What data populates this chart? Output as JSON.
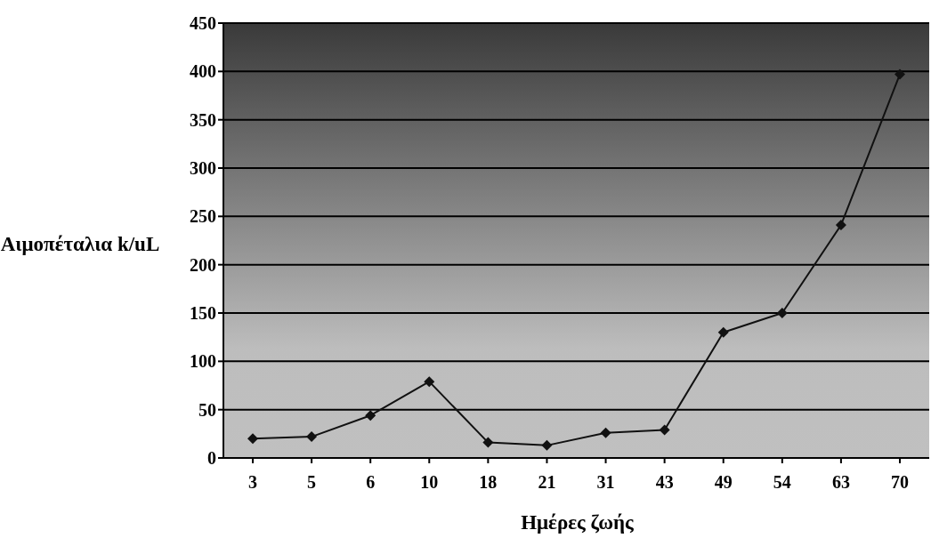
{
  "chart_data": {
    "type": "line",
    "xlabel": "Ημέρες ζωής",
    "ylabel": "Αιμοπέταλια k/uL",
    "categories": [
      "3",
      "5",
      "6",
      "10",
      "18",
      "21",
      "31",
      "43",
      "49",
      "54",
      "63",
      "70"
    ],
    "series": [
      {
        "color": "#111111",
        "values": [
          20,
          22,
          44,
          79,
          16,
          13,
          26,
          29,
          130,
          150,
          241,
          397
        ]
      }
    ],
    "ylim": [
      0,
      450
    ],
    "yticks": [
      0,
      50,
      100,
      150,
      200,
      250,
      300,
      350,
      400,
      450
    ],
    "grid": "y",
    "marker": "diamond",
    "line_style": "solid"
  }
}
